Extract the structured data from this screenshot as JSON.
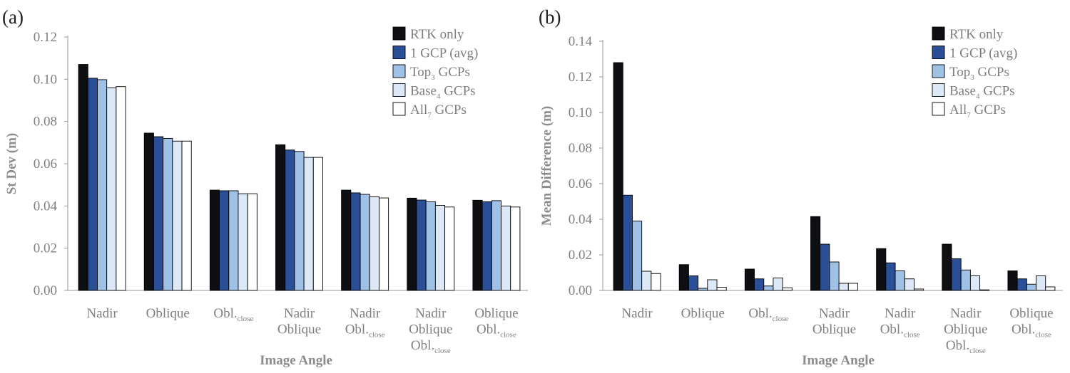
{
  "series_styles": [
    {
      "color": "#0d0f12"
    },
    {
      "color": "#2a4f96"
    },
    {
      "color": "#9fc1e6"
    },
    {
      "color": "#dde9f6"
    },
    {
      "color": "#ffffff"
    }
  ],
  "chart_data": [
    {
      "type": "bar",
      "panel_label": "(a)",
      "title": "",
      "xlabel": "Image Angle",
      "ylabel": "St Dev (m)",
      "ylim": [
        0,
        0.12
      ],
      "yticks": [
        "0.00",
        "0.02",
        "0.04",
        "0.06",
        "0.08",
        "0.10",
        "0.12"
      ],
      "legend_position": "top-right",
      "categories": [
        [
          {
            "t": "Nadir"
          }
        ],
        [
          {
            "t": "Oblique"
          }
        ],
        [
          {
            "t": "Obl.",
            "s": "close"
          }
        ],
        [
          {
            "t": "Nadir"
          },
          {
            "t": "Oblique"
          }
        ],
        [
          {
            "t": "Nadir"
          },
          {
            "t": "Obl.",
            "s": "close"
          }
        ],
        [
          {
            "t": "Nadir"
          },
          {
            "t": "Oblique"
          },
          {
            "t": "Obl.",
            "s": "close"
          }
        ],
        [
          {
            "t": "Oblique"
          },
          {
            "t": "Obl.",
            "s": "close"
          }
        ]
      ],
      "series": [
        {
          "name": "RTK only",
          "name_main": "RTK only",
          "name_sub": "",
          "name_rest": "",
          "values": [
            0.107,
            0.0745,
            0.0475,
            0.069,
            0.0475,
            0.0437,
            0.0427
          ]
        },
        {
          "name": "1 GCP (avg)",
          "name_main": "1 GCP (avg)",
          "name_sub": "",
          "name_rest": "",
          "values": [
            0.1005,
            0.0728,
            0.0472,
            0.0665,
            0.0462,
            0.0428,
            0.042
          ]
        },
        {
          "name": "Top3 GCPs",
          "name_main": "Top",
          "name_sub": "3",
          "name_rest": " GCPs",
          "values": [
            0.0998,
            0.072,
            0.0472,
            0.0658,
            0.0455,
            0.042,
            0.0425
          ]
        },
        {
          "name": "Base4 GCPs",
          "name_main": "Base",
          "name_sub": "4",
          "name_rest": " GCPs",
          "values": [
            0.096,
            0.0707,
            0.0458,
            0.063,
            0.0443,
            0.0403,
            0.04
          ]
        },
        {
          "name": "All7 GCPs",
          "name_main": "All",
          "name_sub": "7",
          "name_rest": " GCPs",
          "values": [
            0.0965,
            0.0707,
            0.0458,
            0.063,
            0.0438,
            0.0395,
            0.0395
          ]
        }
      ]
    },
    {
      "type": "bar",
      "panel_label": "(b)",
      "title": "",
      "xlabel": "Image Angle",
      "ylabel": "Mean Difference (m)",
      "ylim": [
        0,
        0.14
      ],
      "yticks": [
        "0.00",
        "0.02",
        "0.04",
        "0.06",
        "0.08",
        "0.10",
        "0.12",
        "0.14"
      ],
      "legend_position": "top-right",
      "categories": [
        [
          {
            "t": "Nadir"
          }
        ],
        [
          {
            "t": "Oblique"
          }
        ],
        [
          {
            "t": "Obl.",
            "s": "close"
          }
        ],
        [
          {
            "t": "Nadir"
          },
          {
            "t": "Oblique"
          }
        ],
        [
          {
            "t": "Nadir"
          },
          {
            "t": "Obl.",
            "s": "close"
          }
        ],
        [
          {
            "t": "Nadir"
          },
          {
            "t": "Oblique"
          },
          {
            "t": "Obl.",
            "s": "close"
          }
        ],
        [
          {
            "t": "Oblique"
          },
          {
            "t": "Obl.",
            "s": "close"
          }
        ]
      ],
      "series": [
        {
          "name": "RTK only",
          "name_main": "RTK only",
          "name_sub": "",
          "name_rest": "",
          "values": [
            0.128,
            0.0145,
            0.012,
            0.0415,
            0.0235,
            0.026,
            0.011
          ]
        },
        {
          "name": "1 GCP (avg)",
          "name_main": "1 GCP (avg)",
          "name_sub": "",
          "name_rest": "",
          "values": [
            0.0535,
            0.0082,
            0.0065,
            0.026,
            0.0155,
            0.0178,
            0.0065
          ]
        },
        {
          "name": "Top3 GCPs",
          "name_main": "Top",
          "name_sub": "3",
          "name_rest": " GCPs",
          "values": [
            0.039,
            0.0012,
            0.0025,
            0.016,
            0.011,
            0.0115,
            0.0035
          ]
        },
        {
          "name": "Base4 GCPs",
          "name_main": "Base",
          "name_sub": "4",
          "name_rest": " GCPs",
          "values": [
            0.0108,
            0.006,
            0.007,
            0.004,
            0.0065,
            0.0082,
            0.0082
          ]
        },
        {
          "name": "All7 GCPs",
          "name_main": "All",
          "name_sub": "7",
          "name_rest": " GCPs",
          "values": [
            0.0095,
            0.0018,
            0.0015,
            0.004,
            0.0008,
            0.0003,
            0.002
          ]
        }
      ]
    }
  ]
}
